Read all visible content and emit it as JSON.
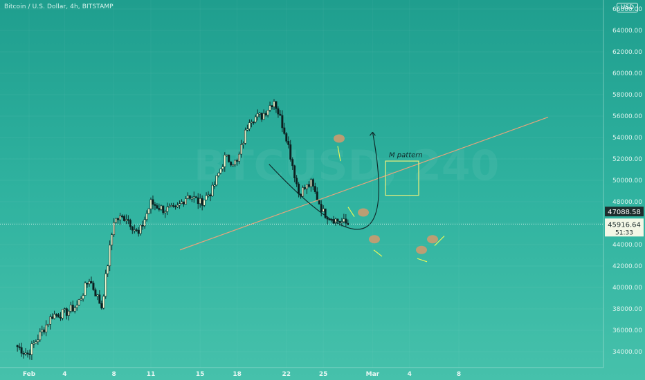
{
  "header": {
    "symbol": "Bitcoin / U.S. Dollar, 4h, BITSTAMP",
    "currency": "USD",
    "watermark": "BTCUSD, 240"
  },
  "annotation": {
    "pattern_label": "M pattern"
  },
  "chart_data": {
    "type": "candlestick",
    "title": "Bitcoin / U.S. Dollar, 4h, BITSTAMP",
    "ylim": [
      33000,
      66000
    ],
    "y_ticks": [
      "34000.00",
      "36000.00",
      "38000.00",
      "40000.00",
      "42000.00",
      "44000.00",
      "46000.00",
      "48000.00",
      "50000.00",
      "52000.00",
      "54000.00",
      "56000.00",
      "58000.00",
      "60000.00",
      "62000.00",
      "64000.00",
      "66000.00"
    ],
    "x_ticks": [
      "Feb",
      "4",
      "8",
      "11",
      "15",
      "18",
      "22",
      "25",
      "Mar",
      "4",
      "8"
    ],
    "price_labels": {
      "reference": "47088.58",
      "current": "45916.64",
      "countdown": "51:33"
    },
    "series": [
      {
        "date": "Feb 1",
        "close": 33800
      },
      {
        "date": "Feb 2",
        "close": 35600
      },
      {
        "date": "Feb 3",
        "close": 37400
      },
      {
        "date": "Feb 4",
        "close": 37600
      },
      {
        "date": "Feb 5",
        "close": 38300
      },
      {
        "date": "Feb 6",
        "close": 40800
      },
      {
        "date": "Feb 7",
        "close": 38200
      },
      {
        "date": "Feb 8",
        "close": 46300
      },
      {
        "date": "Feb 9",
        "close": 46600
      },
      {
        "date": "Feb 10",
        "close": 44900
      },
      {
        "date": "Feb 11",
        "close": 47900
      },
      {
        "date": "Feb 12",
        "close": 47300
      },
      {
        "date": "Feb 13",
        "close": 47200
      },
      {
        "date": "Feb 14",
        "close": 48700
      },
      {
        "date": "Feb 15",
        "close": 47900
      },
      {
        "date": "Feb 16",
        "close": 49100
      },
      {
        "date": "Feb 17",
        "close": 52100
      },
      {
        "date": "Feb 18",
        "close": 51600
      },
      {
        "date": "Feb 19",
        "close": 55800
      },
      {
        "date": "Feb 20",
        "close": 56000
      },
      {
        "date": "Feb 21",
        "close": 57500
      },
      {
        "date": "Feb 22",
        "close": 54100
      },
      {
        "date": "Feb 23",
        "close": 48800
      },
      {
        "date": "Feb 24",
        "close": 49700
      },
      {
        "date": "Feb 25",
        "close": 47000
      },
      {
        "date": "Feb 26",
        "close": 46300
      },
      {
        "date": "Feb 27",
        "close": 45900
      }
    ]
  }
}
